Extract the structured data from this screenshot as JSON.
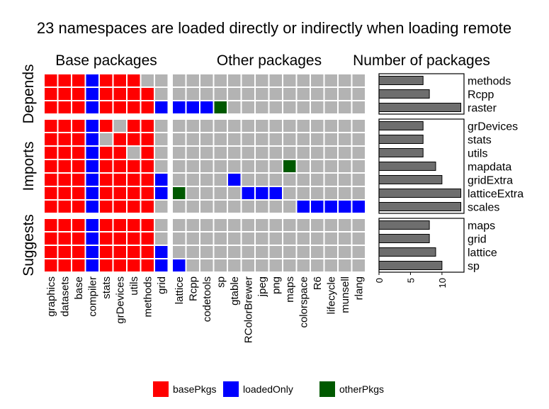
{
  "chart_data": {
    "type": "heatmap",
    "title": "23 namespaces are loaded directly or indirectly when loading remote",
    "panels": {
      "base_title": "Base packages",
      "other_title": "Other packages",
      "count_title": "Number of packages"
    },
    "colors": {
      "basePkgs": "#ff0000",
      "loadedOnly": "#0000ff",
      "otherPkgs": "#005900",
      "none": "#b3b3b3",
      "bar": "#6e6e6e"
    },
    "base_columns": [
      "graphics",
      "datasets",
      "base",
      "compiler",
      "stats",
      "grDevices",
      "utils",
      "methods",
      "grid"
    ],
    "other_columns": [
      "lattice",
      "Rcpp",
      "codetools",
      "sp",
      "gtable",
      "RColorBrewer",
      "jpeg",
      "png",
      "maps",
      "colorspace",
      "R6",
      "lifecycle",
      "munsell",
      "rlang"
    ],
    "groups": [
      {
        "name": "Depends",
        "rows": [
          {
            "pkg": "methods",
            "count": 7,
            "base": "BBBLBBBNN",
            "other": "NNNNNNNNNNNNNN"
          },
          {
            "pkg": "Rcpp",
            "count": 8,
            "base": "BBBLBBBBN",
            "other": "NNNNNNNNNNNNNN"
          },
          {
            "pkg": "raster",
            "count": 13,
            "base": "BBBLBBBBL",
            "other": "LLLONNNNNNNNNN"
          }
        ]
      },
      {
        "name": "Imports",
        "rows": [
          {
            "pkg": "grDevices",
            "count": 7,
            "base": "BBBLBNBBN",
            "other": "NNNNNNNNNNNNNN"
          },
          {
            "pkg": "stats",
            "count": 7,
            "base": "BBBLNBBBN",
            "other": "NNNNNNNNNNNNNN"
          },
          {
            "pkg": "utils",
            "count": 7,
            "base": "BBBLBBNBN",
            "other": "NNNNNNNNNNNNNN"
          },
          {
            "pkg": "mapdata",
            "count": 9,
            "base": "BBBLBBBBN",
            "other": "NNNNNNNNONNNNN"
          },
          {
            "pkg": "gridExtra",
            "count": 10,
            "base": "BBBLBBBBL",
            "other": "NNNNLNNNNNNNNN"
          },
          {
            "pkg": "latticeExtra",
            "count": 13,
            "base": "BBBLBBBBL",
            "other": "ONNNNLLLNNNNNN"
          },
          {
            "pkg": "scales",
            "count": 13,
            "base": "BBBLBBBBN",
            "other": "NNNNNNNNNLLLLL"
          }
        ]
      },
      {
        "name": "Suggests",
        "rows": [
          {
            "pkg": "maps",
            "count": 8,
            "base": "BBBLBBBBN",
            "other": "NNNNNNNNNNNNNN"
          },
          {
            "pkg": "grid",
            "count": 8,
            "base": "BBBLBBBBN",
            "other": "NNNNNNNNNNNNNN"
          },
          {
            "pkg": "lattice",
            "count": 9,
            "base": "BBBLBBBBL",
            "other": "NNNNNNNNNNNNNN"
          },
          {
            "pkg": "sp",
            "count": 10,
            "base": "BBBLBBBBL",
            "other": "LNNNNNNNNNNNNN"
          }
        ]
      }
    ],
    "bar_axis": {
      "xlim": [
        0,
        13.5
      ],
      "ticks": [
        0,
        5,
        10
      ]
    },
    "legend": {
      "position": "bottom",
      "items": [
        {
          "key": "basePkgs",
          "label": "basePkgs"
        },
        {
          "key": "loadedOnly",
          "label": "loadedOnly"
        },
        {
          "key": "otherPkgs",
          "label": "otherPkgs"
        }
      ]
    }
  }
}
